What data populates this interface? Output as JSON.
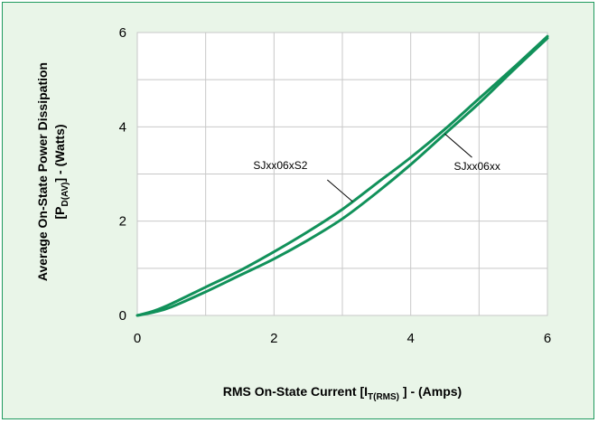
{
  "chart_data": {
    "type": "line",
    "xlabel": {
      "main": "RMS On-State  Current [I",
      "sub": "T(RMS)",
      "end": "] - (Amps)"
    },
    "ylabel": {
      "line1": "Average On-State  Power  Dissipation",
      "line2_pre": "[P",
      "line2_sub": "D(AV)",
      "line2_end": "] - (Watts)"
    },
    "xlim": [
      0,
      6
    ],
    "ylim": [
      0,
      6
    ],
    "xticks": [
      0,
      2,
      4,
      6
    ],
    "yticks": [
      0,
      2,
      4,
      6
    ],
    "grid": true,
    "series": [
      {
        "name": "SJxx06xS2",
        "color": "#11915a",
        "x": [
          0,
          0.25,
          0.5,
          1,
          1.5,
          2,
          2.5,
          3,
          3.5,
          4,
          4.5,
          5,
          5.5,
          6
        ],
        "y": [
          0,
          0.1,
          0.25,
          0.6,
          0.95,
          1.35,
          1.78,
          2.25,
          2.8,
          3.35,
          3.95,
          4.6,
          5.25,
          5.92
        ]
      },
      {
        "name": "SJxx06xx",
        "color": "#11915a",
        "x": [
          0,
          0.25,
          0.5,
          1,
          1.5,
          2,
          2.5,
          3,
          3.5,
          4,
          4.5,
          5,
          5.5,
          6
        ],
        "y": [
          0,
          0.07,
          0.18,
          0.5,
          0.85,
          1.2,
          1.6,
          2.05,
          2.6,
          3.2,
          3.85,
          4.5,
          5.2,
          5.88
        ]
      }
    ],
    "annotations": [
      {
        "text": "SJxx06xS2",
        "series": 0,
        "x": 3.15
      },
      {
        "text": "SJxx06xx",
        "series": 1,
        "x": 4.5
      }
    ]
  }
}
